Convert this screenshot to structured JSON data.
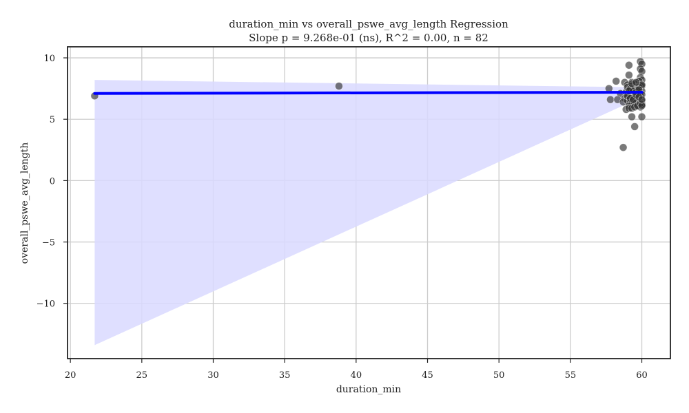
{
  "chart_data": {
    "type": "scatter",
    "title": "duration_min vs overall_pswe_avg_length Regression",
    "subtitle": "Slope p = 9.268e-01 (ns), R^2 = 0.00, n = 82",
    "xlabel": "duration_min",
    "ylabel": "overall_pswe_avg_length",
    "xlim": [
      19.8,
      62
    ],
    "ylim": [
      -14.5,
      10.9
    ],
    "xticks": [
      20,
      25,
      30,
      35,
      40,
      45,
      50,
      55,
      60
    ],
    "xtick_labels": [
      "20",
      "25",
      "30",
      "35",
      "40",
      "45",
      "50",
      "55",
      "60"
    ],
    "yticks": [
      10,
      5,
      0,
      -5,
      -10
    ],
    "ytick_labels": [
      "10",
      "5",
      "0",
      "−5",
      "−10"
    ],
    "grid": true,
    "regression_line": {
      "x": [
        21.7,
        60.0
      ],
      "y": [
        7.1,
        7.2
      ]
    },
    "confidence_band": {
      "x": [
        21.7,
        60.0
      ],
      "upper": [
        8.2,
        7.6
      ],
      "lower": [
        -13.4,
        6.8
      ]
    },
    "points": {
      "x": [
        21.7,
        38.8,
        58.7,
        59.1,
        59.9,
        60.0,
        59.9,
        60.0,
        59.1,
        59.9,
        60.0,
        59.8,
        59.3,
        59.5,
        58.2,
        58.8,
        59.0,
        59.2,
        59.6,
        59.9,
        60.0,
        57.7,
        59.2,
        59.4,
        59.7,
        60.0,
        58.5,
        58.9,
        59.1,
        59.3,
        59.5,
        59.7,
        59.9,
        57.8,
        58.3,
        58.8,
        59.0,
        59.2,
        59.4,
        59.6,
        59.8,
        60.0,
        58.7,
        59.0,
        59.2,
        59.4,
        59.6,
        59.8,
        60.0,
        59.1,
        59.3,
        59.5,
        59.7,
        59.9,
        60.0,
        58.9,
        59.1,
        59.3,
        59.5,
        59.7,
        59.9,
        60.0,
        59.0,
        59.2,
        59.4,
        59.6,
        59.8,
        60.0,
        59.3,
        59.6,
        59.8,
        60.0,
        59.0,
        59.2,
        59.4,
        59.6,
        59.8,
        60.0,
        59.1,
        59.3,
        59.5,
        60.0
      ],
      "y": [
        6.9,
        7.7,
        2.7,
        9.4,
        9.7,
        9.5,
        9.1,
        8.9,
        8.6,
        8.4,
        8.2,
        8.1,
        8.0,
        7.9,
        8.1,
        8.0,
        7.8,
        7.7,
        7.6,
        7.8,
        7.7,
        7.5,
        7.4,
        7.5,
        7.4,
        7.3,
        7.1,
        7.2,
        7.1,
        7.0,
        7.1,
        7.0,
        6.9,
        6.6,
        6.6,
        6.7,
        6.8,
        6.7,
        6.6,
        6.8,
        6.7,
        6.5,
        6.4,
        6.5,
        6.4,
        6.3,
        6.5,
        6.4,
        6.2,
        6.1,
        6.2,
        6.3,
        6.1,
        6.0,
        6.2,
        5.8,
        5.9,
        5.9,
        6.0,
        6.1,
        6.3,
        6.1,
        7.6,
        7.5,
        7.3,
        7.2,
        7.6,
        7.8,
        7.9,
        8.0,
        7.4,
        7.0,
        6.9,
        6.7,
        6.6,
        7.0,
        6.8,
        6.6,
        7.3,
        5.2,
        4.4,
        5.2
      ]
    },
    "colors": {
      "points": "#333333",
      "line": "#0000ff",
      "band": "#d9d9ff",
      "grid": "#cccccc",
      "axes": "#222222"
    }
  }
}
